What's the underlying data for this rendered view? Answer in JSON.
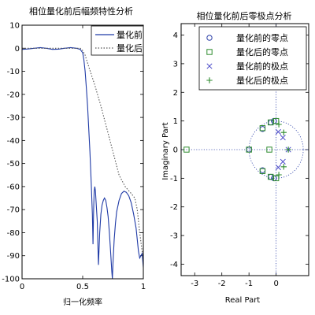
{
  "chart_data": [
    {
      "type": "line",
      "title": "相位量化前后幅频特性分析",
      "xlabel": "归一化频率",
      "ylabel": "",
      "xlim": [
        0,
        1
      ],
      "ylim": [
        -100,
        10
      ],
      "xticks": [
        "0",
        "0.5",
        "1"
      ],
      "xtick_values": [
        0,
        0.5,
        1
      ],
      "yticks": [
        "10",
        "0",
        "-10",
        "-20",
        "-30",
        "-40",
        "-50",
        "-60",
        "-70",
        "-80",
        "-90",
        "-100"
      ],
      "ytick_values": [
        10,
        0,
        -10,
        -20,
        -30,
        -40,
        -50,
        -60,
        -70,
        -80,
        -90,
        -100
      ],
      "grid": false,
      "legend_position": "top-right",
      "series": [
        {
          "name": "量化前",
          "style": "solid",
          "color": "#1f3aa6",
          "x": [
            0,
            0.05,
            0.1,
            0.15,
            0.2,
            0.25,
            0.3,
            0.35,
            0.4,
            0.45,
            0.48,
            0.5,
            0.51,
            0.52,
            0.53,
            0.54,
            0.55,
            0.56,
            0.57,
            0.58,
            0.585,
            0.59,
            0.595,
            0.6,
            0.605,
            0.61,
            0.62,
            0.63,
            0.64,
            0.65,
            0.66,
            0.67,
            0.68,
            0.69,
            0.7,
            0.71,
            0.72,
            0.73,
            0.74,
            0.745,
            0.75,
            0.76,
            0.77,
            0.78,
            0.8,
            0.82,
            0.84,
            0.86,
            0.88,
            0.9,
            0.92,
            0.94,
            0.95,
            0.96,
            0.97,
            0.98,
            0.99,
            1.0
          ],
          "y": [
            -0.5,
            -0.3,
            0,
            0.3,
            0,
            -0.5,
            -0.4,
            0,
            0.3,
            0,
            -0.5,
            -2,
            -5,
            -10,
            -17,
            -25,
            -35,
            -45,
            -58,
            -72,
            -85,
            -70,
            -62,
            -60,
            -62,
            -66,
            -75,
            -94,
            -80,
            -72,
            -68,
            -66,
            -65,
            -66,
            -69,
            -73,
            -80,
            -88,
            -97,
            -100,
            -93,
            -83,
            -76,
            -71,
            -66,
            -63,
            -62,
            -62.5,
            -64,
            -67,
            -72,
            -78,
            -83,
            -88,
            -91,
            -90,
            -89,
            -95
          ]
        },
        {
          "name": "量化后",
          "style": "dotted",
          "color": "#555555",
          "x": [
            0,
            0.05,
            0.1,
            0.15,
            0.2,
            0.25,
            0.3,
            0.35,
            0.4,
            0.45,
            0.48,
            0.5,
            0.52,
            0.55,
            0.6,
            0.65,
            0.7,
            0.75,
            0.8,
            0.85,
            0.9,
            0.93,
            0.95,
            0.97,
            1.0
          ],
          "y": [
            0,
            0,
            0,
            0,
            0,
            0,
            0,
            0,
            0,
            0,
            0,
            -1,
            -3,
            -8,
            -16,
            -25,
            -35,
            -45,
            -55,
            -60,
            -63,
            -65,
            -70,
            -80,
            -92
          ]
        }
      ]
    },
    {
      "type": "scatter",
      "title": "相位量化前后零极点分析",
      "xlabel": "Real Part",
      "ylabel": "Imaginary Part",
      "xlim": [
        -3.5,
        1.2
      ],
      "ylim": [
        -4.4,
        4.4
      ],
      "xticks": [
        "-3",
        "-2",
        "-1",
        "0"
      ],
      "xtick_values": [
        -3,
        -2,
        -1,
        0
      ],
      "yticks": [
        "4",
        "3",
        "2",
        "1",
        "0",
        "-1",
        "-2",
        "-3",
        "-4"
      ],
      "ytick_values": [
        4,
        3,
        2,
        1,
        0,
        -1,
        -2,
        -3,
        -4
      ],
      "grid": false,
      "legend_position": "top-right",
      "unit_circle": true,
      "series": [
        {
          "name": "量化前的零点",
          "marker": "circle",
          "color": "#2b3fa8",
          "x": [
            -1.0,
            -0.5,
            -0.5,
            -0.2,
            -0.2,
            -0.08,
            -0.08
          ],
          "y": [
            0.0,
            0.72,
            -0.72,
            0.95,
            -0.95,
            1.0,
            -1.0
          ]
        },
        {
          "name": "量化后的零点",
          "marker": "square",
          "color": "#2e8b2e",
          "x": [
            -3.3,
            -1.0,
            -0.25,
            -0.5,
            -0.5,
            0.0,
            0.0,
            -0.2,
            -0.2
          ],
          "y": [
            0.0,
            0.0,
            0.0,
            0.75,
            -0.75,
            1.0,
            -1.0,
            0.95,
            -0.95
          ]
        },
        {
          "name": "量化前的极点",
          "marker": "x",
          "color": "#4a4ac8",
          "x": [
            0.45,
            0.25,
            0.25,
            0.08,
            0.08
          ],
          "y": [
            0.0,
            0.42,
            -0.42,
            0.62,
            -0.62
          ]
        },
        {
          "name": "量化后的极点",
          "marker": "plus",
          "color": "#2e8b2e",
          "x": [
            0.1,
            0.1,
            0.28,
            0.28,
            0.45
          ],
          "y": [
            0.88,
            -0.88,
            0.6,
            -0.6,
            0.0
          ]
        }
      ]
    }
  ]
}
